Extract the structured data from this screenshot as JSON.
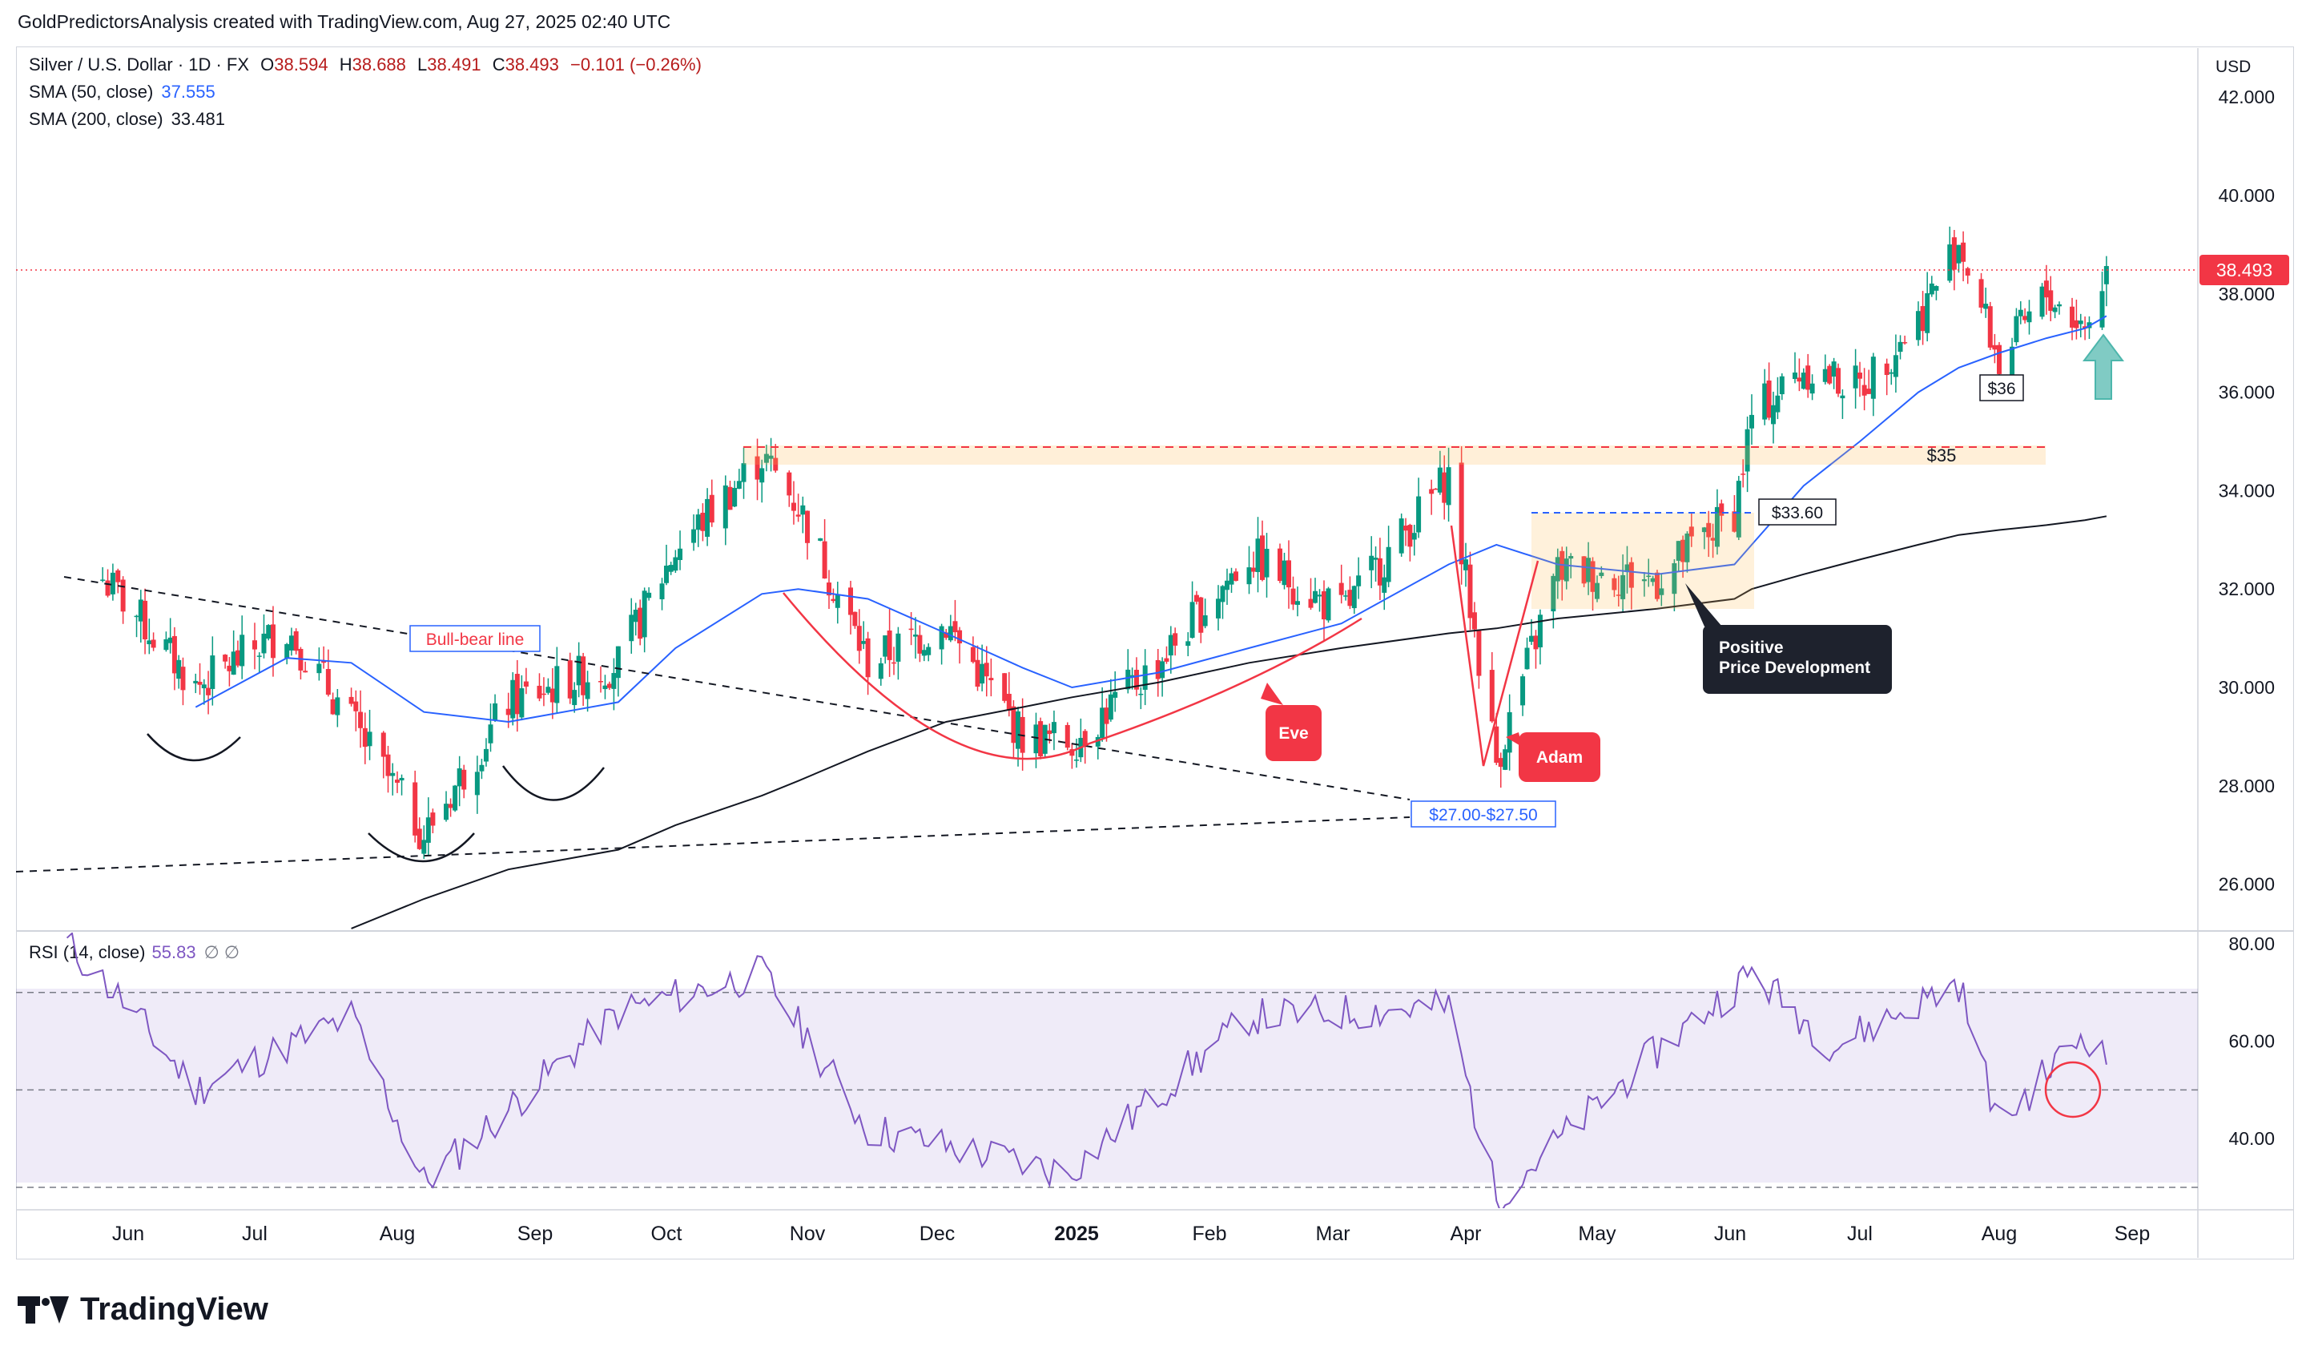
{
  "header": {
    "attribution": "GoldPredictorsAnalysis created with TradingView.com, Aug 27, 2025 02:40 UTC"
  },
  "legend": {
    "symbol": "Silver / U.S. Dollar · 1D · FX",
    "o_label": "O",
    "o_value": "38.594",
    "h_label": "H",
    "h_value": "38.688",
    "l_label": "L",
    "l_value": "38.491",
    "c_label": "C",
    "c_value": "38.493",
    "change": "−0.101 (−0.26%)",
    "sma50_label": "SMA (50, close)",
    "sma50_value": "37.555",
    "sma200_label": "SMA (200, close)",
    "sma200_value": "33.481"
  },
  "rsi_legend": {
    "label": "RSI (14, close)",
    "value": "55.83",
    "extra": "∅ ∅"
  },
  "currency": "USD",
  "last_price_badge": "38.493",
  "colors": {
    "up": "#089981",
    "down": "#f23645",
    "sma50": "#2962ff",
    "sma200": "#131722",
    "rsi": "#7e57c2",
    "annotation_red": "#f23645",
    "resistance": "#f7525f"
  },
  "annotations": {
    "bull_bear": "Bull-bear line",
    "support_zone": "$27.00-$27.50",
    "resistance": "$35",
    "level_3360": "$33.60",
    "level_36": "$36",
    "eve": "Eve",
    "adam": "Adam",
    "positive_line1": "Positive",
    "positive_line2": "Price Development"
  },
  "brand": "TradingView",
  "chart_data": [
    {
      "type": "candlestick",
      "title": "Silver / U.S. Dollar · 1D · FX",
      "ylabel": "USD",
      "ylim": [
        24.8,
        42.8
      ],
      "y_ticks": [
        "42.000",
        "40.000",
        "38.000",
        "36.000",
        "34.000",
        "32.000",
        "30.000",
        "28.000",
        "26.000"
      ],
      "x_ticks": [
        "Jun",
        "Jul",
        "Aug",
        "Sep",
        "Oct",
        "Nov",
        "Dec",
        "2025",
        "Feb",
        "Mar",
        "Apr",
        "May",
        "Jun",
        "Jul",
        "Aug",
        "Sep"
      ],
      "x": [
        "2024-05-27",
        "2024-06-17",
        "2024-07-08",
        "2024-07-22",
        "2024-08-07",
        "2024-08-26",
        "2024-09-20",
        "2024-10-03",
        "2024-10-22",
        "2024-10-30",
        "2024-11-15",
        "2024-12-03",
        "2024-12-20",
        "2024-12-31",
        "2025-01-20",
        "2025-02-10",
        "2025-03-03",
        "2025-03-28",
        "2025-04-08",
        "2025-04-22",
        "2025-05-15",
        "2025-06-02",
        "2025-06-06",
        "2025-06-18",
        "2025-07-01",
        "2025-07-14",
        "2025-07-23",
        "2025-08-01",
        "2025-08-12",
        "2025-08-21",
        "2025-08-26"
      ],
      "series": [
        {
          "name": "Silver / U.S. Dollar",
          "values": [
            32.2,
            30.0,
            31.2,
            29.3,
            27.0,
            29.7,
            30.5,
            32.8,
            34.7,
            33.7,
            30.5,
            31.3,
            29.0,
            28.9,
            30.5,
            32.7,
            31.5,
            34.3,
            28.5,
            32.4,
            32.2,
            33.6,
            35.5,
            36.5,
            36.1,
            37.5,
            39.1,
            36.6,
            38.0,
            37.3,
            38.49
          ]
        },
        {
          "name": "SMA (50, close)",
          "values": [
            null,
            29.6,
            30.6,
            30.5,
            29.5,
            29.3,
            29.7,
            30.8,
            31.9,
            32.0,
            31.8,
            31.1,
            30.4,
            30.0,
            30.3,
            30.8,
            31.3,
            32.5,
            32.9,
            32.5,
            32.3,
            32.5,
            32.9,
            34.1,
            35.0,
            36.0,
            36.5,
            36.8,
            37.1,
            37.3,
            37.55
          ]
        },
        {
          "name": "SMA (200, close)",
          "values": [
            null,
            null,
            null,
            25.1,
            25.7,
            26.3,
            26.7,
            27.2,
            27.8,
            28.1,
            28.7,
            29.3,
            29.6,
            29.8,
            30.1,
            30.5,
            30.8,
            31.1,
            31.2,
            31.4,
            31.6,
            31.8,
            32.0,
            32.3,
            32.6,
            32.9,
            33.1,
            33.2,
            33.3,
            33.4,
            33.48
          ]
        }
      ],
      "levels": [
        35.0,
        33.6,
        36.0,
        27.25
      ],
      "grid": false
    },
    {
      "type": "line",
      "title": "RSI (14, close)",
      "ylim": [
        25,
        82
      ],
      "y_ticks": [
        "80.00",
        "60.00",
        "40.00"
      ],
      "bands": [
        30,
        50,
        70
      ],
      "x": [
        "2024-05-20",
        "2024-06-17",
        "2024-07-22",
        "2024-08-07",
        "2024-09-20",
        "2024-10-22",
        "2024-11-15",
        "2024-12-30",
        "2025-02-10",
        "2025-03-28",
        "2025-04-08",
        "2025-05-15",
        "2025-06-06",
        "2025-06-25",
        "2025-07-23",
        "2025-08-01",
        "2025-08-21",
        "2025-08-26"
      ],
      "series": [
        {
          "name": "RSI (14, close)",
          "values": [
            80,
            50,
            65,
            31,
            66,
            74,
            42,
            33,
            65,
            67,
            28,
            58,
            74,
            59,
            72,
            43,
            62,
            55.83
          ]
        }
      ]
    }
  ]
}
